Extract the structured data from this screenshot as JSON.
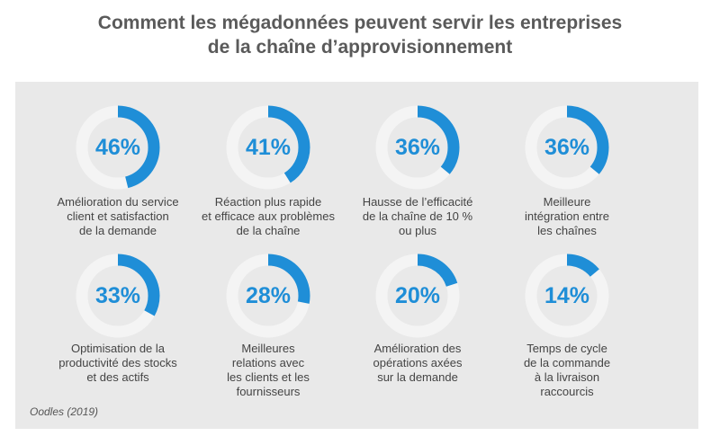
{
  "title": {
    "line1": "Comment les mégadonnées peuvent servir les entreprises",
    "line2": "de la chaîne d’approvisionnement"
  },
  "colors": {
    "accent": "#1f8ed7",
    "track": "#f4f4f4",
    "panel": "#e9e9e9",
    "title": "#5a5a5a"
  },
  "source": "Oodles (2019)",
  "chart_data": {
    "type": "pie",
    "subtype": "donut-grid",
    "title": "Comment les mégadonnées peuvent servir les entreprises de la chaîne d’approvisionnement",
    "unit": "%",
    "items": [
      {
        "value": 46,
        "display": "46%",
        "label": [
          "Amélioration du service",
          "client et satisfaction",
          "de la demande"
        ]
      },
      {
        "value": 41,
        "display": "41%",
        "label": [
          "Réaction plus rapide",
          "et efficace aux problèmes",
          "de la chaîne"
        ]
      },
      {
        "value": 36,
        "display": "36%",
        "label": [
          "Hausse de l’efficacité",
          "de la chaîne de 10 %",
          "ou plus"
        ]
      },
      {
        "value": 36,
        "display": "36%",
        "label": [
          "Meilleure",
          "intégration entre",
          "les chaînes"
        ]
      },
      {
        "value": 33,
        "display": "33%",
        "label": [
          "Optimisation de la",
          "productivité des stocks",
          "et des actifs"
        ]
      },
      {
        "value": 28,
        "display": "28%",
        "label": [
          "Meilleures",
          "relations avec",
          "les clients et les",
          "fournisseurs"
        ]
      },
      {
        "value": 20,
        "display": "20%",
        "label": [
          "Amélioration des",
          "opérations axées",
          "sur la demande"
        ]
      },
      {
        "value": 14,
        "display": "14%",
        "label": [
          "Temps de cycle",
          "de la commande",
          "à la livraison",
          "raccourcis"
        ]
      }
    ]
  }
}
